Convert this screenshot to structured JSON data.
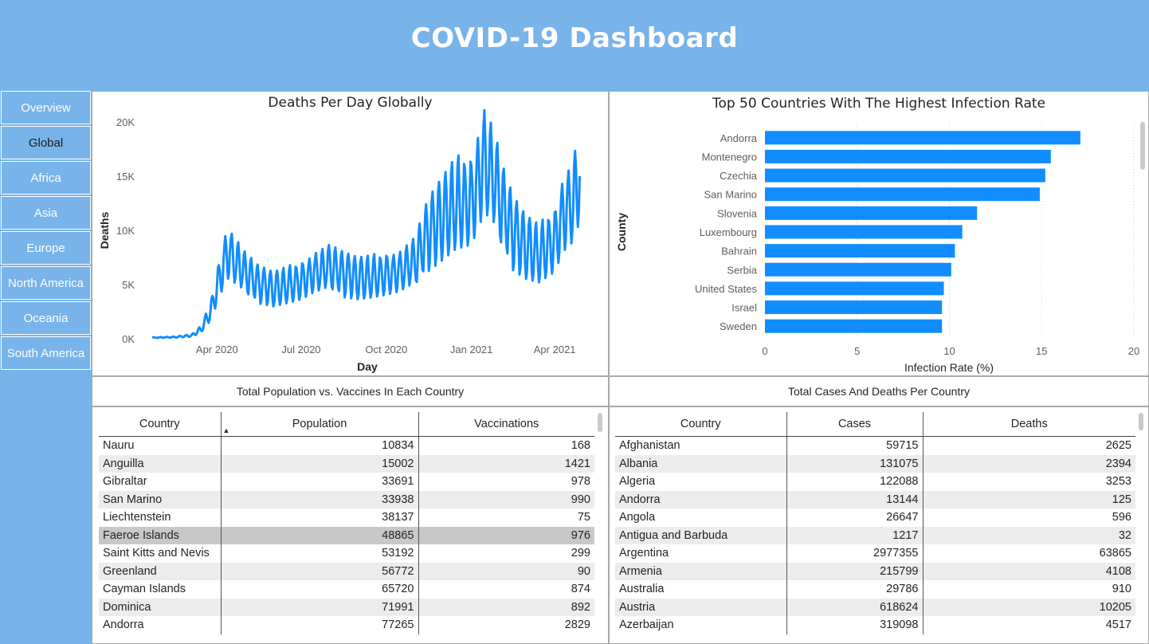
{
  "header": {
    "title": "COVID-19 Dashboard"
  },
  "nav": {
    "items": [
      {
        "label": "Overview"
      },
      {
        "label": "Global"
      },
      {
        "label": "Africa"
      },
      {
        "label": "Asia"
      },
      {
        "label": "Europe"
      },
      {
        "label": "North America"
      },
      {
        "label": "Oceania"
      },
      {
        "label": "South America"
      }
    ],
    "active_index": 1
  },
  "colors": {
    "accent": "#118dff",
    "background": "#78b3ea",
    "panel": "#ffffff"
  },
  "line_chart": {
    "chart_data": {
      "type": "line",
      "title": "Deaths Per Day Globally",
      "xlabel": "Day",
      "ylabel": "Deaths",
      "y_ticks": [
        "0K",
        "5K",
        "10K",
        "15K",
        "20K"
      ],
      "x_ticks": [
        "Apr 2020",
        "Jul 2020",
        "Oct 2020",
        "Jan 2021",
        "Apr 2021"
      ],
      "ylim": [
        0,
        20000
      ],
      "x_range": [
        "2020-01-22",
        "2021-05-01"
      ],
      "series": [
        {
          "x": [
            "2020-01-22",
            "2020-02-15",
            "2020-03-05",
            "2020-03-15",
            "2020-03-25",
            "2020-04-05",
            "2020-04-12",
            "2020-04-20",
            "2020-05-01",
            "2020-05-15",
            "2020-06-01",
            "2020-06-15",
            "2020-07-01",
            "2020-07-15",
            "2020-08-01",
            "2020-08-15",
            "2020-09-01",
            "2020-09-15",
            "2020-10-01",
            "2020-10-15",
            "2020-11-01",
            "2020-11-15",
            "2020-12-01",
            "2020-12-15",
            "2021-01-01",
            "2021-01-15",
            "2021-01-25",
            "2021-02-05",
            "2021-02-15",
            "2021-03-01",
            "2021-03-15",
            "2021-04-01",
            "2021-04-10",
            "2021-04-20",
            "2021-04-28"
          ],
          "y": [
            100,
            150,
            300,
            900,
            2500,
            6000,
            8000,
            7300,
            6200,
            5200,
            4600,
            4900,
            5300,
            6100,
            6700,
            6100,
            5600,
            5700,
            5900,
            6200,
            7200,
            9800,
            11200,
            12400,
            12600,
            16500,
            15000,
            12000,
            10000,
            8500,
            7800,
            9000,
            11500,
            12500,
            15000
          ]
        }
      ]
    }
  },
  "bar_chart": {
    "chart_data": {
      "type": "bar",
      "orientation": "horizontal",
      "title": "Top 50 Countries With The Highest Infection Rate",
      "xlabel": "Infection Rate (%)",
      "ylabel": "County",
      "x_ticks": [
        "0",
        "5",
        "10",
        "15",
        "20"
      ],
      "xlim": [
        0,
        20
      ],
      "categories": [
        "Andorra",
        "Montenegro",
        "Czechia",
        "San Marino",
        "Slovenia",
        "Luxembourg",
        "Bahrain",
        "Serbia",
        "United States",
        "Israel",
        "Sweden"
      ],
      "values": [
        17.1,
        15.5,
        15.2,
        14.9,
        11.5,
        10.7,
        10.3,
        10.1,
        9.7,
        9.6,
        9.6
      ]
    }
  },
  "captions": {
    "left": "Total Population vs. Vaccines In Each Country",
    "right": "Total Cases And Deaths Per Country"
  },
  "table_left": {
    "headers": [
      "Country",
      "Population",
      "Vaccinations"
    ],
    "sort_indicator": "▲",
    "rows": [
      [
        "Nauru",
        "10834",
        "168"
      ],
      [
        "Anguilla",
        "15002",
        "1421"
      ],
      [
        "Gibraltar",
        "33691",
        "978"
      ],
      [
        "San Marino",
        "33938",
        "990"
      ],
      [
        "Liechtenstein",
        "38137",
        "75"
      ],
      [
        "Faeroe Islands",
        "48865",
        "976"
      ],
      [
        "Saint Kitts and Nevis",
        "53192",
        "299"
      ],
      [
        "Greenland",
        "56772",
        "90"
      ],
      [
        "Cayman Islands",
        "65720",
        "874"
      ],
      [
        "Dominica",
        "71991",
        "892"
      ],
      [
        "Andorra",
        "77265",
        "2829"
      ]
    ]
  },
  "table_right": {
    "headers": [
      "Country",
      "Cases",
      "Deaths"
    ],
    "rows": [
      [
        "Afghanistan",
        "59715",
        "2625"
      ],
      [
        "Albania",
        "131075",
        "2394"
      ],
      [
        "Algeria",
        "122088",
        "3253"
      ],
      [
        "Andorra",
        "13144",
        "125"
      ],
      [
        "Angola",
        "26647",
        "596"
      ],
      [
        "Antigua and Barbuda",
        "1217",
        "32"
      ],
      [
        "Argentina",
        "2977355",
        "63865"
      ],
      [
        "Armenia",
        "215799",
        "4108"
      ],
      [
        "Australia",
        "29786",
        "910"
      ],
      [
        "Austria",
        "618624",
        "10205"
      ],
      [
        "Azerbaijan",
        "319098",
        "4517"
      ]
    ]
  }
}
